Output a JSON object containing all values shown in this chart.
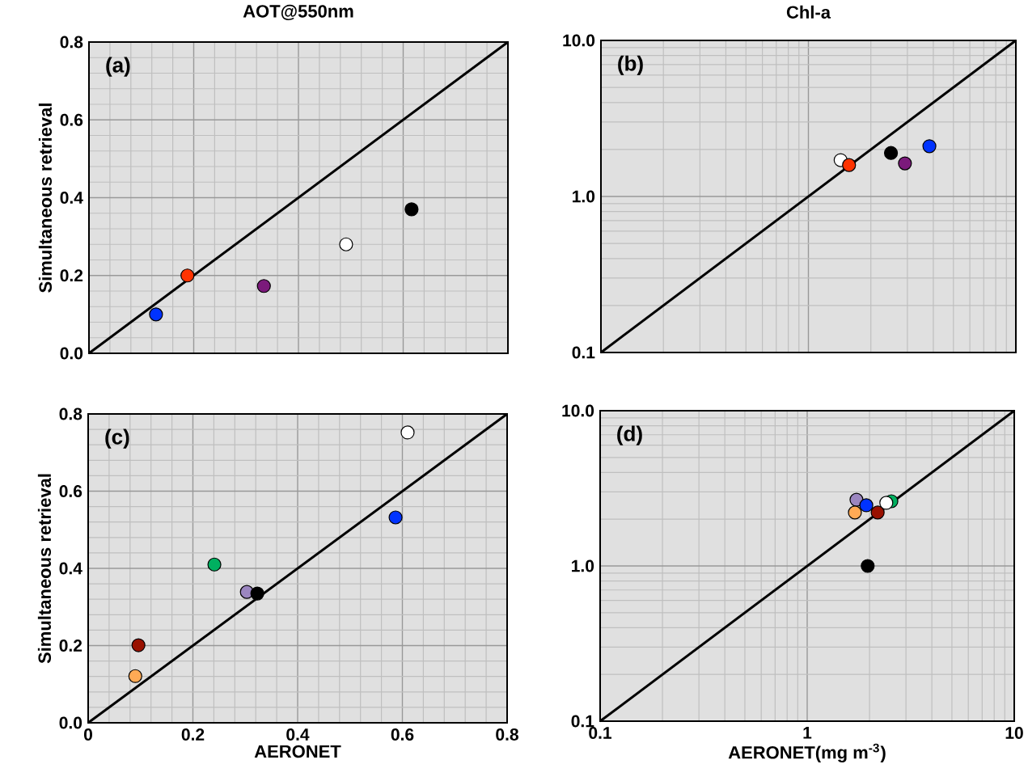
{
  "chart_data": [
    {
      "type": "scatter",
      "title": "AOT@550nm",
      "ylabel": "Simultaneous retrieval",
      "annotations": [
        "(a)"
      ],
      "xlim": [
        0,
        0.8
      ],
      "ylim": [
        0,
        0.8
      ],
      "xticks": [
        {
          "value": 0,
          "label": null
        },
        {
          "value": 0.2,
          "label": null
        },
        {
          "value": 0.4,
          "label": null
        },
        {
          "value": 0.6,
          "label": null
        },
        {
          "value": 0.8,
          "label": null
        }
      ],
      "yticks": [
        {
          "value": 0,
          "label": "0.0"
        },
        0.2,
        0.4,
        0.6,
        0.8
      ],
      "tick_labels": "y",
      "grid": true,
      "series": [
        {
          "type": "scatter",
          "marker": "circle",
          "x": [
            0.128,
            0.188,
            0.334,
            0.491,
            0.616
          ],
          "values": [
            0.1,
            0.2,
            0.173,
            0.28,
            0.37
          ],
          "colors": [
            "#0033ff",
            "#ff3300",
            "#7b1a7b",
            "#ffffff",
            "#000000"
          ]
        },
        {
          "type": "line",
          "marker": "none",
          "x": [
            0,
            0.8
          ],
          "values": [
            0,
            0.8
          ],
          "color": "#000000"
        }
      ]
    },
    {
      "type": "scatter",
      "title": "Chl-a",
      "annotations": [
        "(b)"
      ],
      "log": "xy",
      "xlim": [
        0.1,
        10
      ],
      "ylim": [
        0.1,
        10
      ],
      "xticks": [
        {
          "value": 0.1,
          "label": null
        },
        {
          "value": 1,
          "label": null
        },
        {
          "value": 10,
          "label": null
        }
      ],
      "yticks": [
        0.1,
        {
          "value": 1,
          "label": "1.0"
        },
        {
          "value": 10,
          "label": "10.0"
        }
      ],
      "tick_labels": "y",
      "grid": true,
      "series": [
        {
          "type": "scatter",
          "marker": "circle",
          "x": [
            1.43,
            1.57,
            2.5,
            2.92,
            3.83
          ],
          "values": [
            1.71,
            1.59,
            1.9,
            1.63,
            2.1
          ],
          "colors": [
            "#ffffff",
            "#ff3300",
            "#000000",
            "#7b1a7b",
            "#0033ff"
          ]
        },
        {
          "type": "line",
          "marker": "none",
          "x": [
            0.1,
            10
          ],
          "values": [
            0.1,
            10
          ],
          "color": "#000000"
        }
      ]
    },
    {
      "type": "scatter",
      "xlabel": "AERONET",
      "ylabel": "Simultaneous retrieval",
      "annotations": [
        "(c)"
      ],
      "xlim": [
        0,
        0.8
      ],
      "ylim": [
        0,
        0.8
      ],
      "xticks": [
        0,
        0.2,
        0.4,
        0.6,
        0.8
      ],
      "yticks": [
        {
          "value": 0,
          "label": "0.0"
        },
        0.2,
        0.4,
        0.6,
        0.8
      ],
      "grid": true,
      "series": [
        {
          "type": "scatter",
          "marker": "circle",
          "x": [
            0.61,
            0.587,
            0.241,
            0.303,
            0.323,
            0.096,
            0.09
          ],
          "values": [
            0.752,
            0.532,
            0.41,
            0.339,
            0.335,
            0.201,
            0.121
          ],
          "colors": [
            "#ffffff",
            "#0033ff",
            "#00b060",
            "#9b86c0",
            "#000000",
            "#991100",
            "#ffaa55"
          ]
        },
        {
          "type": "line",
          "marker": "none",
          "x": [
            0,
            0.8
          ],
          "values": [
            0,
            0.8
          ],
          "color": "#000000"
        }
      ]
    },
    {
      "type": "scatter",
      "xlabel": "AERONET(mg m$^{-3}$)",
      "annotations": [
        "(d)"
      ],
      "log": "xy",
      "xlim": [
        0.1,
        10
      ],
      "ylim": [
        0.1,
        10
      ],
      "xticks": [
        0.1,
        1,
        10
      ],
      "yticks": [
        0.1,
        {
          "value": 1,
          "label": "1.0"
        },
        {
          "value": 10,
          "label": "10.0"
        }
      ],
      "grid": true,
      "series": [
        {
          "type": "scatter",
          "marker": "circle",
          "x": [
            2.55,
            1.73,
            1.93,
            1.7,
            2.19,
            2.41,
            1.96
          ],
          "values": [
            2.61,
            2.67,
            2.46,
            2.21,
            2.21,
            2.55,
            1.0
          ],
          "colors": [
            "#00b060",
            "#9b86c0",
            "#0033ff",
            "#ffaa55",
            "#991100",
            "#ffffff",
            "#000000"
          ]
        },
        {
          "type": "line",
          "marker": "none",
          "x": [
            0.1,
            10
          ],
          "values": [
            0.1,
            10
          ],
          "color": "#000000"
        }
      ]
    }
  ]
}
